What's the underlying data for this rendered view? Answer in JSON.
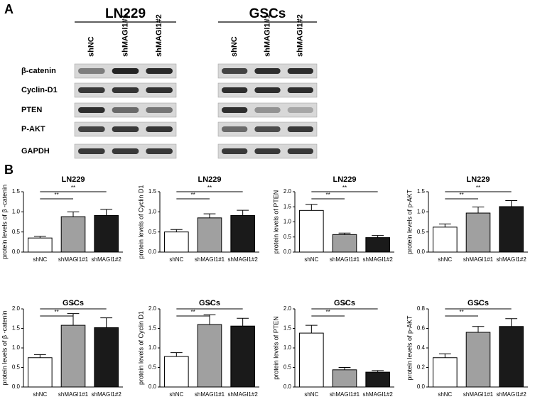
{
  "panel_labels": [
    "A",
    "B"
  ],
  "blot": {
    "groups": [
      {
        "title": "LN229",
        "lanes": [
          "shNC",
          "shMAGI1#1",
          "shMAGI1#2"
        ]
      },
      {
        "title": "GSCs",
        "lanes": [
          "shNC",
          "shMAGI1#1",
          "shMAGI1#2"
        ]
      }
    ],
    "proteins": [
      "β-catenin",
      "Cyclin-D1",
      "PTEN",
      "P-AKT",
      "GAPDH"
    ]
  },
  "chart_data": [
    {
      "type": "bar",
      "title": "LN229",
      "ylabel": "protein levels of β -catenin",
      "categories": [
        "shNC",
        "shMAGI1#1",
        "shMAGI1#2"
      ],
      "values": [
        0.35,
        0.88,
        0.91
      ],
      "errors": [
        0.04,
        0.12,
        0.15
      ],
      "colors": [
        "#ffffff",
        "#a0a0a0",
        "#1a1a1a"
      ],
      "ylim": [
        0,
        1.5
      ],
      "yticks": [
        {
          "value": 0,
          "label": "0.0"
        },
        0.5,
        {
          "value": 1,
          "label": "1.0"
        },
        1.5
      ],
      "significance": [
        "**",
        "**"
      ]
    },
    {
      "type": "bar",
      "title": "LN229",
      "ylabel": "protein levels of Cyclin D1",
      "categories": [
        "shNC",
        "shMAGI1#1",
        "shMAGI1#2"
      ],
      "values": [
        0.5,
        0.85,
        0.91
      ],
      "errors": [
        0.06,
        0.1,
        0.13
      ],
      "colors": [
        "#ffffff",
        "#a0a0a0",
        "#1a1a1a"
      ],
      "ylim": [
        0,
        1.5
      ],
      "yticks": [
        {
          "value": 0,
          "label": "0.0"
        },
        0.5,
        {
          "value": 1,
          "label": "1.0"
        },
        1.5
      ],
      "significance": [
        "**",
        "**"
      ]
    },
    {
      "type": "bar",
      "title": "LN229",
      "ylabel": "protein levels of PTEN",
      "categories": [
        "shNC",
        "shMAGI1#1",
        "shMAGI1#2"
      ],
      "values": [
        1.38,
        0.58,
        0.48
      ],
      "errors": [
        0.2,
        0.05,
        0.07
      ],
      "colors": [
        "#ffffff",
        "#a0a0a0",
        "#1a1a1a"
      ],
      "ylim": [
        0,
        2
      ],
      "yticks": [
        {
          "value": 0,
          "label": "0.0"
        },
        0.5,
        {
          "value": 1,
          "label": "1.0"
        },
        1.5,
        {
          "value": 2,
          "label": "2.0"
        }
      ],
      "significance": [
        "**",
        "**"
      ]
    },
    {
      "type": "bar",
      "title": "LN229",
      "ylabel": "protein levels of p-AKT",
      "categories": [
        "shNC",
        "shMAGI1#1",
        "shMAGI1#2"
      ],
      "values": [
        0.62,
        0.97,
        1.13
      ],
      "errors": [
        0.08,
        0.15,
        0.15
      ],
      "colors": [
        "#ffffff",
        "#a0a0a0",
        "#1a1a1a"
      ],
      "ylim": [
        0,
        1.5
      ],
      "yticks": [
        {
          "value": 0,
          "label": "0.0"
        },
        0.5,
        {
          "value": 1,
          "label": "1.0"
        },
        1.5
      ],
      "significance": [
        "**",
        "**"
      ]
    },
    {
      "type": "bar",
      "title": "GSCs",
      "ylabel": "protein levels of β -catenin",
      "categories": [
        "shNC",
        "shMAGI1#1",
        "shMAGI1#2"
      ],
      "values": [
        0.75,
        1.58,
        1.52
      ],
      "errors": [
        0.08,
        0.3,
        0.25
      ],
      "colors": [
        "#ffffff",
        "#a0a0a0",
        "#1a1a1a"
      ],
      "ylim": [
        0,
        2
      ],
      "yticks": [
        {
          "value": 0,
          "label": "0.0"
        },
        0.5,
        {
          "value": 1,
          "label": "1.0"
        },
        1.5,
        {
          "value": 2,
          "label": "2.0"
        }
      ],
      "significance": [
        "**",
        "**"
      ]
    },
    {
      "type": "bar",
      "title": "GSCs",
      "ylabel": "protein levels of Cyclin D1",
      "categories": [
        "shNC",
        "shMAGI1#1",
        "shMAGI1#2"
      ],
      "values": [
        0.78,
        1.6,
        1.56
      ],
      "errors": [
        0.1,
        0.25,
        0.2
      ],
      "colors": [
        "#ffffff",
        "#a0a0a0",
        "#1a1a1a"
      ],
      "ylim": [
        0,
        2
      ],
      "yticks": [
        {
          "value": 0,
          "label": "0.0"
        },
        0.5,
        {
          "value": 1,
          "label": "1.0"
        },
        1.5,
        {
          "value": 2,
          "label": "2.0"
        }
      ],
      "significance": [
        "**",
        "**"
      ]
    },
    {
      "type": "bar",
      "title": "GSCs",
      "ylabel": "protein levels of PTEN",
      "categories": [
        "shNC",
        "shMAGI1#1",
        "shMAGI1#2"
      ],
      "values": [
        1.38,
        0.44,
        0.38
      ],
      "errors": [
        0.2,
        0.06,
        0.04
      ],
      "colors": [
        "#ffffff",
        "#a0a0a0",
        "#1a1a1a"
      ],
      "ylim": [
        0,
        2
      ],
      "yticks": [
        {
          "value": 0,
          "label": "0.0"
        },
        0.5,
        {
          "value": 1,
          "label": "1.0"
        },
        1.5,
        {
          "value": 2,
          "label": "2.0"
        }
      ],
      "significance": [
        "**",
        "**"
      ]
    },
    {
      "type": "bar",
      "title": "GSCs",
      "ylabel": "protein levels of p-AKT",
      "categories": [
        "shNC",
        "shMAGI1#1",
        "shMAGI1#2"
      ],
      "values": [
        0.3,
        0.56,
        0.62
      ],
      "errors": [
        0.04,
        0.06,
        0.08
      ],
      "colors": [
        "#ffffff",
        "#a0a0a0",
        "#1a1a1a"
      ],
      "ylim": [
        0,
        0.8
      ],
      "yticks": [
        {
          "value": 0,
          "label": "0.0"
        },
        0.2,
        0.4,
        0.6,
        0.8
      ],
      "significance": [
        "**",
        "**"
      ]
    }
  ]
}
